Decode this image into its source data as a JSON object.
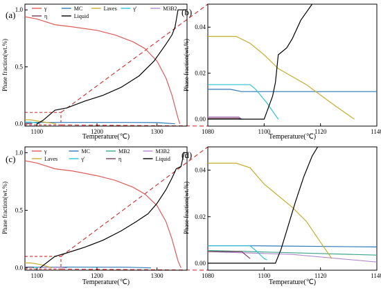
{
  "panels": [
    {
      "label": "(a)"
    },
    {
      "label": "(b)"
    },
    {
      "label": "(c)"
    },
    {
      "label": "(d)"
    }
  ],
  "colors": {
    "gamma": "#e05a5a",
    "MC": "#2f7ab8",
    "MB2": "#3aa889",
    "M3B2": "#b38acc",
    "Laves": "#c7ad2e",
    "gamma_prime": "#2fc4d4",
    "eta": "#7a3a5a",
    "Liquid": "#000000",
    "zoom_guide": "#d62828"
  },
  "chart_data": [
    {
      "panel": "a",
      "type": "line",
      "xlabel": "Temperature(℃)",
      "ylabel": "Phase fraction(wt.%)",
      "xlim": [
        1080,
        1350
      ],
      "ylim": [
        -0.02,
        1.05
      ],
      "xticks": [
        1100,
        1200,
        1300
      ],
      "yticks": [
        0.0,
        0.5,
        1.0
      ],
      "xtick_labels": [
        "1100",
        "1200",
        "1300"
      ],
      "ytick_labels": [
        "0.0",
        "0.5",
        "1.0"
      ],
      "legend": {
        "placement": "top",
        "columns": 5
      },
      "series": [
        {
          "name": "γ",
          "key": "gamma",
          "x": [
            1080,
            1100,
            1130,
            1160,
            1200,
            1230,
            1260,
            1280,
            1300,
            1315,
            1325,
            1335,
            1338
          ],
          "y": [
            0.94,
            0.92,
            0.87,
            0.85,
            0.82,
            0.78,
            0.72,
            0.66,
            0.55,
            0.4,
            0.25,
            0.05,
            0.0
          ]
        },
        {
          "name": "MC",
          "key": "MC",
          "x": [
            1080,
            1150,
            1250,
            1300,
            1330
          ],
          "y": [
            0.012,
            0.012,
            0.012,
            0.011,
            0.0
          ]
        },
        {
          "name": "Laves",
          "key": "Laves",
          "x": [
            1080,
            1090,
            1105,
            1125,
            1132
          ],
          "y": [
            0.036,
            0.035,
            0.02,
            0.006,
            0.0
          ]
        },
        {
          "name": "γ'",
          "key": "gamma_prime",
          "x": [
            1080,
            1090,
            1100,
            1105
          ],
          "y": [
            0.015,
            0.015,
            0.006,
            0.0
          ]
        },
        {
          "name": "M3B2",
          "key": "M3B2",
          "x": [
            1080,
            1090,
            1092
          ],
          "y": [
            0.001,
            0.001,
            0.0
          ]
        },
        {
          "name": "η",
          "key": "eta",
          "x": [
            1080,
            1091,
            1092
          ],
          "y": [
            0.003,
            0.003,
            0.0
          ]
        },
        {
          "name": "Liquid",
          "key": "Liquid",
          "x": [
            1100,
            1110,
            1130,
            1150,
            1180,
            1210,
            1240,
            1270,
            1295,
            1315,
            1325,
            1330,
            1335,
            1345,
            1350
          ],
          "y": [
            0.0,
            0.03,
            0.12,
            0.14,
            0.2,
            0.25,
            0.32,
            0.42,
            0.55,
            0.7,
            0.78,
            0.85,
            1.0,
            1.0,
            1.0
          ]
        }
      ],
      "zoom_box": {
        "x": [
          1080,
          1140
        ],
        "y": [
          -0.01,
          0.1
        ]
      }
    },
    {
      "panel": "b",
      "type": "line",
      "xlabel": "Temperature(℃)",
      "ylabel": "Phase fraction(wt.%)",
      "xlim": [
        1080,
        1140
      ],
      "ylim": [
        -0.003,
        0.05
      ],
      "xticks": [
        1080,
        1100,
        1120,
        1140
      ],
      "yticks": [
        0.0,
        0.02,
        0.04
      ],
      "xtick_labels": [
        "1080",
        "1100",
        "1120",
        "1140"
      ],
      "ytick_labels": [
        "0.00",
        "0.02",
        "0.04"
      ],
      "series": [
        {
          "name": "γ",
          "key": "gamma",
          "x": [],
          "y": []
        },
        {
          "name": "MC",
          "key": "MC",
          "x": [
            1080,
            1088,
            1092,
            1140
          ],
          "y": [
            0.013,
            0.013,
            0.012,
            0.012
          ]
        },
        {
          "name": "Laves",
          "key": "Laves",
          "x": [
            1080,
            1090,
            1095,
            1100,
            1105,
            1115,
            1125,
            1132
          ],
          "y": [
            0.036,
            0.036,
            0.033,
            0.028,
            0.022,
            0.015,
            0.006,
            0.0
          ]
        },
        {
          "name": "γ'",
          "key": "gamma_prime",
          "x": [
            1080,
            1095,
            1097,
            1101,
            1105
          ],
          "y": [
            0.015,
            0.015,
            0.013,
            0.007,
            0.0
          ]
        },
        {
          "name": "M3B2",
          "key": "M3B2",
          "x": [
            1080,
            1091,
            1092
          ],
          "y": [
            0.001,
            0.001,
            0.0
          ]
        },
        {
          "name": "η",
          "key": "eta",
          "x": [
            1080,
            1091,
            1092
          ],
          "y": [
            0.0005,
            0.0005,
            0.0
          ]
        },
        {
          "name": "Liquid",
          "key": "Liquid",
          "x": [
            1080,
            1100,
            1103,
            1104,
            1105,
            1108,
            1110,
            1113,
            1117
          ],
          "y": [
            0.0,
            0.0,
            0.01,
            0.016,
            0.028,
            0.031,
            0.035,
            0.043,
            0.05
          ]
        }
      ]
    },
    {
      "panel": "c",
      "type": "line",
      "xlabel": "Temperature(℃)",
      "ylabel": "Phase fraction(wt.%)",
      "xlim": [
        1080,
        1350
      ],
      "ylim": [
        -0.02,
        1.05
      ],
      "xticks": [
        1100,
        1200,
        1300
      ],
      "yticks": [
        0.0,
        0.5,
        1.0
      ],
      "xtick_labels": [
        "1100",
        "1200",
        "1300"
      ],
      "ytick_labels": [
        "0.0",
        "0.5",
        "1.0"
      ],
      "legend": {
        "placement": "top",
        "columns": 4
      },
      "series": [
        {
          "name": "γ",
          "key": "gamma",
          "x": [
            1080,
            1100,
            1130,
            1160,
            1200,
            1230,
            1260,
            1280,
            1300,
            1315,
            1325,
            1335,
            1340
          ],
          "y": [
            0.93,
            0.91,
            0.86,
            0.84,
            0.8,
            0.76,
            0.7,
            0.64,
            0.54,
            0.4,
            0.25,
            0.06,
            0.0
          ]
        },
        {
          "name": "MC",
          "key": "MC",
          "x": [
            1080,
            1150,
            1250,
            1290
          ],
          "y": [
            0.007,
            0.007,
            0.006,
            0.0
          ]
        },
        {
          "name": "MB2",
          "key": "MB2",
          "x": [
            1080,
            1140,
            1150
          ],
          "y": [
            0.006,
            0.006,
            0.0
          ]
        },
        {
          "name": "M3B2",
          "key": "M3B2",
          "x": [
            1080,
            1140,
            1150
          ],
          "y": [
            0.005,
            0.004,
            0.0
          ]
        },
        {
          "name": "Laves",
          "key": "Laves",
          "x": [
            1080,
            1090,
            1105,
            1120,
            1125
          ],
          "y": [
            0.043,
            0.043,
            0.03,
            0.008,
            0.0
          ]
        },
        {
          "name": "γ'",
          "key": "gamma_prime",
          "x": [
            1080,
            1095,
            1100,
            1102
          ],
          "y": [
            0.007,
            0.007,
            0.002,
            0.0
          ]
        },
        {
          "name": "η",
          "key": "eta",
          "x": [
            1080,
            1092,
            1095
          ],
          "y": [
            0.005,
            0.005,
            0.0
          ]
        },
        {
          "name": "Liquid",
          "key": "Liquid",
          "x": [
            1105,
            1110,
            1130,
            1150,
            1180,
            1210,
            1240,
            1265,
            1285,
            1300,
            1315,
            1325,
            1332,
            1340,
            1345,
            1350
          ],
          "y": [
            0.0,
            0.02,
            0.1,
            0.13,
            0.18,
            0.24,
            0.32,
            0.4,
            0.47,
            0.56,
            0.68,
            0.78,
            0.86,
            0.88,
            1.0,
            1.0
          ]
        }
      ],
      "zoom_box": {
        "x": [
          1080,
          1140
        ],
        "y": [
          -0.01,
          0.1
        ]
      }
    },
    {
      "panel": "d",
      "type": "line",
      "xlabel": "Temperature(℃)",
      "ylabel": "Phase fraction(wt.%)",
      "xlim": [
        1080,
        1140
      ],
      "ylim": [
        -0.003,
        0.05
      ],
      "xticks": [
        1080,
        1100,
        1120,
        1140
      ],
      "yticks": [
        0.0,
        0.02,
        0.04
      ],
      "xtick_labels": [
        "1080",
        "1100",
        "1120",
        "1140"
      ],
      "ytick_labels": [
        "0.00",
        "0.02",
        "0.04"
      ],
      "series": [
        {
          "name": "γ",
          "key": "gamma",
          "x": [],
          "y": []
        },
        {
          "name": "MC",
          "key": "MC",
          "x": [
            1080,
            1095,
            1140
          ],
          "y": [
            0.0075,
            0.0075,
            0.007
          ]
        },
        {
          "name": "MB2",
          "key": "MB2",
          "x": [
            1080,
            1110,
            1140
          ],
          "y": [
            0.0055,
            0.0045,
            0.0035
          ]
        },
        {
          "name": "M3B2",
          "key": "M3B2",
          "x": [
            1080,
            1110,
            1140
          ],
          "y": [
            0.005,
            0.0038,
            0.0005
          ]
        },
        {
          "name": "Laves",
          "key": "Laves",
          "x": [
            1080,
            1090,
            1095,
            1100,
            1105,
            1110,
            1115,
            1120,
            1124
          ],
          "y": [
            0.043,
            0.043,
            0.041,
            0.034,
            0.029,
            0.024,
            0.018,
            0.009,
            0.002
          ]
        },
        {
          "name": "γ'",
          "key": "gamma_prime",
          "x": [
            1080,
            1095,
            1097,
            1100,
            1101
          ],
          "y": [
            0.0075,
            0.0075,
            0.0055,
            0.002,
            0.0015
          ]
        },
        {
          "name": "η",
          "key": "eta",
          "x": [
            1080,
            1092,
            1095
          ],
          "y": [
            0.005,
            0.005,
            0.002
          ]
        },
        {
          "name": "Liquid",
          "key": "Liquid",
          "x": [
            1080,
            1104,
            1106,
            1108,
            1111,
            1114,
            1117,
            1119
          ],
          "y": [
            0.0,
            0.0,
            0.006,
            0.014,
            0.026,
            0.037,
            0.046,
            0.05
          ]
        }
      ]
    }
  ]
}
